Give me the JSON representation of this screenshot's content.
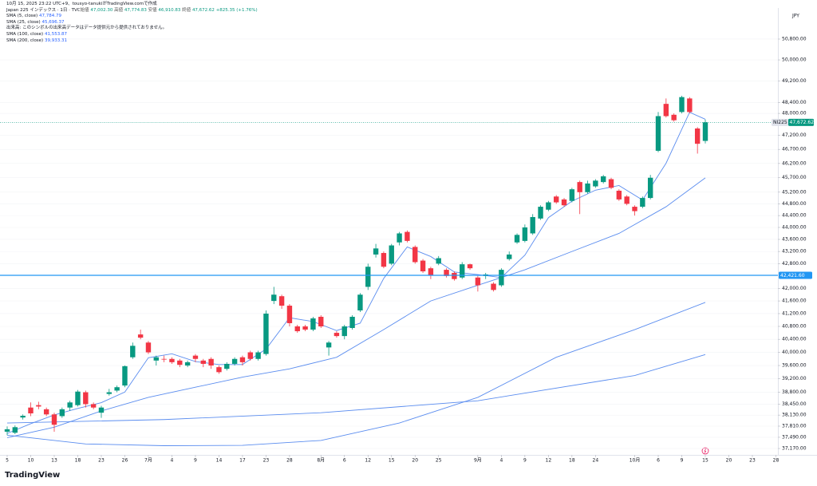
{
  "header": {
    "created": "10月 15, 2025 23:22 UTC+9、tousyo-tanukiがTradingView.comで作成"
  },
  "footer": {
    "brand": "TradingView"
  },
  "chart_data": {
    "type": "candlestick",
    "title": "Japan 225 インデックス · 1日 · TVC",
    "ohlc_legend": [
      {
        "name": "始値",
        "value": 47002.3,
        "label": "47,002.30"
      },
      {
        "name": "高値",
        "value": 47774.83,
        "label": "47,774.83"
      },
      {
        "name": "安値",
        "value": 46910.83,
        "label": "46,910.83"
      },
      {
        "name": "終値",
        "value": 47672.62,
        "label": "47,672.62"
      }
    ],
    "change": {
      "value": 825.35,
      "percent": 1.76,
      "label": "+825.35 (+1.76%)"
    },
    "volume_note": "出来高: このシンボルの出来高データはデータ提供元から提供されておりません。",
    "currency": "JPY",
    "log_scale": true,
    "grid": true,
    "up_color": "#089981",
    "down_color": "#f23645",
    "categories": [
      "5",
      null,
      null,
      "10",
      null,
      null,
      "13",
      null,
      null,
      "18",
      null,
      null,
      "23",
      null,
      null,
      "26",
      null,
      null,
      "7月",
      null,
      null,
      "4",
      null,
      null,
      "9",
      null,
      null,
      "14",
      null,
      null,
      "17",
      null,
      null,
      "23",
      null,
      null,
      "28",
      null,
      null,
      null,
      "8月",
      null,
      null,
      "6",
      null,
      null,
      "12",
      null,
      null,
      "15",
      null,
      null,
      "20",
      null,
      null,
      "25",
      null,
      null,
      null,
      null,
      "9月",
      null,
      null,
      "4",
      null,
      null,
      "9",
      null,
      null,
      "12",
      null,
      null,
      "18",
      null,
      null,
      "24",
      null,
      null,
      null,
      null,
      "10月",
      null,
      null,
      "6",
      null,
      null,
      "9",
      null,
      null,
      "15",
      null,
      null,
      "20",
      null,
      null,
      "23",
      null,
      null,
      "28"
    ],
    "open": [
      37650,
      37620,
      38060,
      38350,
      38420,
      38300,
      38150,
      38100,
      38350,
      38420,
      38800,
      38450,
      38200,
      38750,
      38850,
      39000,
      39850,
      40550,
      40300,
      39750,
      39800,
      39800,
      39750,
      39600,
      39900,
      39750,
      39800,
      39550,
      39500,
      39650,
      39850,
      40000,
      39800,
      39950,
      41600,
      41750,
      41450,
      40800,
      40800,
      40700,
      41100,
      40150,
      40600,
      40500,
      40750,
      41300,
      42050,
      43100,
      43150,
      42800,
      43500,
      43850,
      43350,
      42900,
      42650,
      42800,
      42600,
      42500,
      42350,
      42780,
      42350,
      42400,
      42150,
      42100,
      42950,
      43500,
      43550,
      43800,
      44300,
      44600,
      45050,
      44950,
      44900,
      45550,
      45200,
      45400,
      45550,
      45650,
      45250,
      45050,
      44700,
      44700,
      45000,
      46650,
      48350,
      47950,
      48050,
      48550,
      47450,
      47002.3,
      null,
      null,
      null,
      null,
      null,
      null,
      null,
      null,
      null
    ],
    "high": [
      37800,
      37830,
      38150,
      38500,
      38520,
      38350,
      38200,
      38350,
      38550,
      38870,
      38850,
      38500,
      38400,
      38900,
      39000,
      39600,
      40300,
      40700,
      40350,
      39900,
      39900,
      39850,
      39800,
      39750,
      39950,
      39800,
      39850,
      39600,
      39700,
      39850,
      39900,
      40050,
      40050,
      41300,
      42050,
      41800,
      41500,
      40850,
      40850,
      41100,
      41150,
      40350,
      40650,
      40850,
      41150,
      41850,
      42800,
      43450,
      43200,
      43450,
      43850,
      43900,
      43400,
      42950,
      42700,
      43050,
      42650,
      42550,
      42850,
      42800,
      42400,
      42500,
      42200,
      42650,
      43200,
      43800,
      44100,
      44450,
      44750,
      44900,
      45100,
      45000,
      45350,
      45600,
      45600,
      45650,
      45800,
      45700,
      45300,
      45100,
      44750,
      45050,
      45800,
      48050,
      48550,
      48000,
      48650,
      48600,
      47500,
      47774.83,
      null,
      null,
      null,
      null,
      null,
      null,
      null,
      null,
      null
    ],
    "low": [
      37550,
      37580,
      38000,
      38100,
      38300,
      38100,
      37650,
      38050,
      38250,
      38380,
      38350,
      38300,
      38050,
      38700,
      38800,
      38950,
      39800,
      40400,
      39950,
      39600,
      39700,
      39650,
      39550,
      39550,
      39700,
      39550,
      39500,
      39350,
      39450,
      39600,
      39600,
      39750,
      39750,
      39900,
      41500,
      41350,
      40800,
      40600,
      40650,
      40650,
      40750,
      39900,
      40450,
      40400,
      40700,
      41250,
      41950,
      43000,
      42650,
      42750,
      43400,
      43500,
      42800,
      42500,
      42300,
      42750,
      42350,
      42250,
      42300,
      42600,
      41900,
      42300,
      41900,
      42050,
      42900,
      43450,
      43500,
      43750,
      44250,
      44550,
      44800,
      44700,
      44850,
      44450,
      45150,
      45350,
      45500,
      45300,
      44900,
      44750,
      44400,
      44650,
      44950,
      46600,
      47850,
      47700,
      48000,
      48000,
      46550,
      46910.83,
      null,
      null,
      null,
      null,
      null,
      null,
      null,
      null,
      null
    ],
    "close": [
      37720,
      37780,
      38110,
      38180,
      38380,
      38150,
      37850,
      38300,
      38500,
      38820,
      38450,
      38350,
      38350,
      38800,
      38950,
      39580,
      40200,
      40450,
      40000,
      39850,
      39780,
      39700,
      39620,
      39700,
      39800,
      39650,
      39600,
      39400,
      39650,
      39800,
      39700,
      39800,
      40000,
      41200,
      41800,
      41450,
      40900,
      40650,
      40700,
      41050,
      40800,
      40300,
      40500,
      40800,
      41100,
      41800,
      42700,
      43300,
      42700,
      43400,
      43800,
      43550,
      42850,
      42550,
      42420,
      42980,
      42400,
      42300,
      42780,
      42650,
      42100,
      42450,
      41950,
      42600,
      43100,
      43750,
      44000,
      44350,
      44700,
      44850,
      44850,
      44750,
      45300,
      45200,
      45500,
      45600,
      45750,
      45350,
      44950,
      44800,
      44550,
      45000,
      45700,
      47900,
      47900,
      47750,
      48600,
      48050,
      46900,
      47672.62,
      null,
      null,
      null,
      null,
      null,
      null,
      null,
      null,
      null
    ],
    "indicators": [
      {
        "name": "SMA (5, close)",
        "color": "#5b8def",
        "last_label": "47,784.79",
        "x": [
          0,
          3,
          6,
          9,
          12,
          15,
          18,
          21,
          24,
          27,
          30,
          33,
          36,
          39,
          42,
          45,
          48,
          51,
          54,
          57,
          60,
          63,
          66,
          69,
          72,
          75,
          78,
          81,
          84,
          87,
          89
        ],
        "values": [
          37600,
          37880,
          38134,
          38324,
          38494,
          38806,
          39836,
          39956,
          39720,
          39630,
          39630,
          40100,
          41070,
          40950,
          40670,
          40900,
          42320,
          43350,
          43034,
          42530,
          42446,
          42350,
          43080,
          44330,
          44890,
          45270,
          45430,
          44930,
          46210,
          48040,
          47784.79
        ]
      },
      {
        "name": "SMA (25, close)",
        "color": "#5b8def",
        "last_label": "45,696.37",
        "x": [
          0,
          6,
          12,
          18,
          24,
          30,
          36,
          42,
          48,
          54,
          60,
          66,
          72,
          78,
          84,
          89
        ],
        "values": [
          37480,
          37780,
          38250,
          38650,
          38950,
          39250,
          39500,
          39850,
          40700,
          41600,
          42100,
          42600,
          43200,
          43800,
          44700,
          45696.37
        ]
      },
      {
        "name": "SMA (100, close)",
        "color": "#5b8def",
        "last_label": "41,553.87",
        "x": [
          0,
          10,
          20,
          30,
          40,
          50,
          60,
          70,
          80,
          89
        ],
        "values": [
          37550,
          37300,
          37250,
          37260,
          37400,
          37900,
          38650,
          39850,
          40700,
          41553.87
        ]
      },
      {
        "name": "SMA (200, close)",
        "color": "#5b8def",
        "last_label": "39,933.31",
        "x": [
          0,
          20,
          40,
          60,
          80,
          89
        ],
        "values": [
          37900,
          38000,
          38200,
          38550,
          39300,
          39933.31
        ]
      }
    ],
    "price_line": {
      "value": 42421.6,
      "label": "42,421.60",
      "color": "#2196f3"
    },
    "last_price": {
      "symbol": "NI225",
      "value": 47672.62,
      "label": "47,672.62"
    },
    "ylim": [
      36990,
      52020
    ],
    "yticks": [
      {
        "value": 37170,
        "label": "37,170.00"
      },
      {
        "value": 37490,
        "label": "37,490.00"
      },
      {
        "value": 37810,
        "label": "37,810.00"
      },
      {
        "value": 38130,
        "label": "38,130.00"
      },
      {
        "value": 38450,
        "label": "38,450.00"
      },
      {
        "value": 38800,
        "label": "38,800.00"
      },
      {
        "value": 39200,
        "label": "39,200.00"
      },
      {
        "value": 39600,
        "label": "39,600.00"
      },
      {
        "value": 40000,
        "label": "40,000.00"
      },
      {
        "value": 40400,
        "label": "40,400.00"
      },
      {
        "value": 40800,
        "label": "40,800.00"
      },
      {
        "value": 41200,
        "label": "41,200.00"
      },
      {
        "value": 41600,
        "label": "41,600.00"
      },
      {
        "value": 42000,
        "label": "42,000.00"
      },
      {
        "value": 42800,
        "label": "42,800.00"
      },
      {
        "value": 43200,
        "label": "43,200.00"
      },
      {
        "value": 43600,
        "label": "43,600.00"
      },
      {
        "value": 44000,
        "label": "44,000.00"
      },
      {
        "value": 44400,
        "label": "44,400.00"
      },
      {
        "value": 44800,
        "label": "44,800.00"
      },
      {
        "value": 45200,
        "label": "45,200.00"
      },
      {
        "value": 45700,
        "label": "45,700.00"
      },
      {
        "value": 46200,
        "label": "46,200.00"
      },
      {
        "value": 46700,
        "label": "46,700.00"
      },
      {
        "value": 47200,
        "label": "47,200.00"
      },
      {
        "value": 48000,
        "label": "48,000.00"
      },
      {
        "value": 48400,
        "label": "48,400.00"
      },
      {
        "value": 49200,
        "label": "49,200.00"
      },
      {
        "value": 50000,
        "label": "50,000.00"
      },
      {
        "value": 50800,
        "label": "50,800.00"
      }
    ]
  }
}
